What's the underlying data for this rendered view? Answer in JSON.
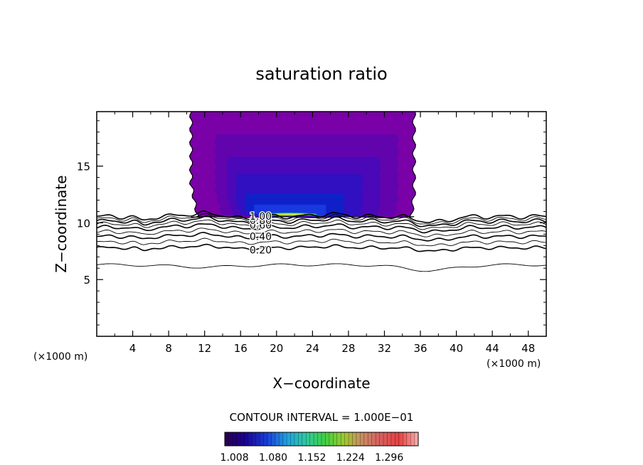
{
  "chart_data": {
    "type": "heatmap",
    "title": "saturation ratio",
    "xlabel": "X−coordinate",
    "ylabel": "Z−coordinate",
    "x_unit_label": "(×1000 m)",
    "y_unit_label": "(×1000 m)",
    "xlim": [
      0,
      50
    ],
    "ylim": [
      0,
      19.8
    ],
    "xticks": [
      4,
      8,
      12,
      16,
      20,
      24,
      28,
      32,
      36,
      40,
      44,
      48
    ],
    "yticks": [
      5,
      10,
      15
    ],
    "contour_interval_text": "CONTOUR INTERVAL = 1.000E−01",
    "contour_labels": [
      {
        "text": "0.20",
        "x": 17.0,
        "z": 7.6
      },
      {
        "text": "0.40",
        "x": 17.0,
        "z": 8.8
      },
      {
        "text": "0.60",
        "x": 17.0,
        "z": 9.8
      },
      {
        "text": "0.80",
        "x": 17.0,
        "z": 10.2
      },
      {
        "text": "1.00",
        "x": 17.0,
        "z": 10.6
      }
    ],
    "contour_levels": [
      0.1,
      0.2,
      0.3,
      0.4,
      0.5,
      0.6,
      0.7,
      0.8,
      0.9,
      1.0
    ],
    "contour_base_heights_km": [
      6.3,
      7.8,
      8.3,
      8.8,
      9.2,
      9.6,
      9.9,
      10.15,
      10.35,
      10.55
    ],
    "supersaturated_region": {
      "x_range": [
        10.5,
        35.3
      ],
      "z_range": [
        10.5,
        19.8
      ]
    },
    "colorbar": {
      "ticks": [
        "1.008",
        "1.080",
        "1.152",
        "1.224",
        "1.296"
      ],
      "min": 0.99,
      "max": 1.35
    },
    "colors": {
      "outer_fill": "#7a00a8",
      "mid_fill": "#4a08b8",
      "inner_fill": "#1020c8",
      "core_fill": "#1838e0",
      "max_band": "#30d060"
    }
  }
}
